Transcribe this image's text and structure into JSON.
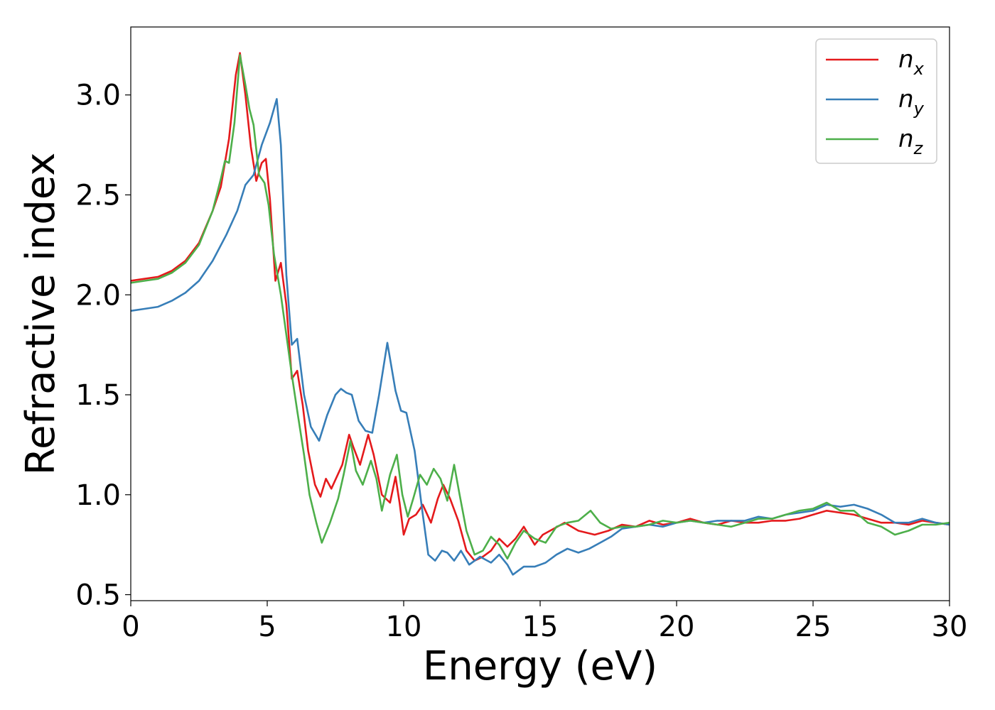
{
  "chart_data": {
    "type": "line",
    "xlabel": "Energy (eV)",
    "ylabel": "Refractive index",
    "xlim": [
      0,
      30
    ],
    "ylim": [
      0.47,
      3.34
    ],
    "xticks": [
      "0",
      "5",
      "10",
      "15",
      "20",
      "25",
      "30"
    ],
    "yticks": [
      "0.5",
      "1.0",
      "1.5",
      "2.0",
      "2.5",
      "3.0"
    ],
    "grid": false,
    "legend_position": "top-right",
    "series": [
      {
        "name": "n",
        "subscript": "x",
        "color": "#e41a1c",
        "points": [
          [
            0,
            2.07
          ],
          [
            0.5,
            2.08
          ],
          [
            1.0,
            2.09
          ],
          [
            1.5,
            2.12
          ],
          [
            2.0,
            2.17
          ],
          [
            2.5,
            2.26
          ],
          [
            3.0,
            2.42
          ],
          [
            3.3,
            2.54
          ],
          [
            3.6,
            2.78
          ],
          [
            3.85,
            3.1
          ],
          [
            4.0,
            3.21
          ],
          [
            4.2,
            3.0
          ],
          [
            4.4,
            2.74
          ],
          [
            4.6,
            2.57
          ],
          [
            4.8,
            2.66
          ],
          [
            4.95,
            2.68
          ],
          [
            5.1,
            2.48
          ],
          [
            5.3,
            2.07
          ],
          [
            5.5,
            2.16
          ],
          [
            5.7,
            1.95
          ],
          [
            5.9,
            1.58
          ],
          [
            6.1,
            1.62
          ],
          [
            6.3,
            1.45
          ],
          [
            6.5,
            1.22
          ],
          [
            6.75,
            1.05
          ],
          [
            6.95,
            0.99
          ],
          [
            7.15,
            1.08
          ],
          [
            7.35,
            1.03
          ],
          [
            7.55,
            1.09
          ],
          [
            7.75,
            1.15
          ],
          [
            8.0,
            1.3
          ],
          [
            8.15,
            1.24
          ],
          [
            8.4,
            1.15
          ],
          [
            8.7,
            1.3
          ],
          [
            8.9,
            1.2
          ],
          [
            9.2,
            1.0
          ],
          [
            9.5,
            0.96
          ],
          [
            9.7,
            1.09
          ],
          [
            9.85,
            0.96
          ],
          [
            10.0,
            0.8
          ],
          [
            10.2,
            0.88
          ],
          [
            10.45,
            0.9
          ],
          [
            10.7,
            0.95
          ],
          [
            11.0,
            0.86
          ],
          [
            11.25,
            0.98
          ],
          [
            11.45,
            1.05
          ],
          [
            11.7,
            0.98
          ],
          [
            12.0,
            0.87
          ],
          [
            12.3,
            0.72
          ],
          [
            12.6,
            0.67
          ],
          [
            12.9,
            0.69
          ],
          [
            13.2,
            0.72
          ],
          [
            13.5,
            0.78
          ],
          [
            13.8,
            0.74
          ],
          [
            14.1,
            0.78
          ],
          [
            14.4,
            0.84
          ],
          [
            14.8,
            0.75
          ],
          [
            15.1,
            0.8
          ],
          [
            15.5,
            0.83
          ],
          [
            15.9,
            0.86
          ],
          [
            16.4,
            0.82
          ],
          [
            17.0,
            0.8
          ],
          [
            17.5,
            0.82
          ],
          [
            18.0,
            0.85
          ],
          [
            18.5,
            0.84
          ],
          [
            19.0,
            0.87
          ],
          [
            19.5,
            0.85
          ],
          [
            20.0,
            0.86
          ],
          [
            20.5,
            0.88
          ],
          [
            21.0,
            0.86
          ],
          [
            21.5,
            0.85
          ],
          [
            22.0,
            0.87
          ],
          [
            22.5,
            0.86
          ],
          [
            23.0,
            0.86
          ],
          [
            23.5,
            0.87
          ],
          [
            24.0,
            0.87
          ],
          [
            24.5,
            0.88
          ],
          [
            25.0,
            0.9
          ],
          [
            25.5,
            0.92
          ],
          [
            26.0,
            0.91
          ],
          [
            26.5,
            0.9
          ],
          [
            27.0,
            0.88
          ],
          [
            27.5,
            0.86
          ],
          [
            28.0,
            0.86
          ],
          [
            28.5,
            0.85
          ],
          [
            29.0,
            0.87
          ],
          [
            29.5,
            0.86
          ],
          [
            30.0,
            0.85
          ]
        ]
      },
      {
        "name": "n",
        "subscript": "y",
        "color": "#377eb8",
        "points": [
          [
            0,
            1.92
          ],
          [
            0.5,
            1.93
          ],
          [
            1.0,
            1.94
          ],
          [
            1.5,
            1.97
          ],
          [
            2.0,
            2.01
          ],
          [
            2.5,
            2.07
          ],
          [
            3.0,
            2.17
          ],
          [
            3.5,
            2.3
          ],
          [
            3.9,
            2.42
          ],
          [
            4.2,
            2.55
          ],
          [
            4.5,
            2.6
          ],
          [
            4.8,
            2.75
          ],
          [
            5.1,
            2.86
          ],
          [
            5.35,
            2.98
          ],
          [
            5.5,
            2.75
          ],
          [
            5.7,
            2.1
          ],
          [
            5.9,
            1.75
          ],
          [
            6.1,
            1.78
          ],
          [
            6.35,
            1.5
          ],
          [
            6.6,
            1.34
          ],
          [
            6.9,
            1.27
          ],
          [
            7.2,
            1.4
          ],
          [
            7.5,
            1.5
          ],
          [
            7.7,
            1.53
          ],
          [
            7.9,
            1.51
          ],
          [
            8.1,
            1.5
          ],
          [
            8.35,
            1.37
          ],
          [
            8.6,
            1.32
          ],
          [
            8.85,
            1.31
          ],
          [
            9.1,
            1.5
          ],
          [
            9.4,
            1.76
          ],
          [
            9.7,
            1.52
          ],
          [
            9.9,
            1.42
          ],
          [
            10.1,
            1.41
          ],
          [
            10.4,
            1.22
          ],
          [
            10.7,
            0.9
          ],
          [
            10.9,
            0.7
          ],
          [
            11.15,
            0.67
          ],
          [
            11.4,
            0.72
          ],
          [
            11.6,
            0.71
          ],
          [
            11.85,
            0.67
          ],
          [
            12.1,
            0.72
          ],
          [
            12.4,
            0.65
          ],
          [
            12.8,
            0.69
          ],
          [
            13.2,
            0.66
          ],
          [
            13.5,
            0.7
          ],
          [
            13.8,
            0.65
          ],
          [
            14.0,
            0.6
          ],
          [
            14.4,
            0.64
          ],
          [
            14.8,
            0.64
          ],
          [
            15.2,
            0.66
          ],
          [
            15.6,
            0.7
          ],
          [
            16.0,
            0.73
          ],
          [
            16.4,
            0.71
          ],
          [
            16.8,
            0.73
          ],
          [
            17.2,
            0.76
          ],
          [
            17.6,
            0.79
          ],
          [
            18.0,
            0.83
          ],
          [
            18.5,
            0.84
          ],
          [
            19.0,
            0.85
          ],
          [
            19.5,
            0.84
          ],
          [
            20.0,
            0.86
          ],
          [
            20.5,
            0.87
          ],
          [
            21.0,
            0.86
          ],
          [
            21.5,
            0.87
          ],
          [
            22.0,
            0.87
          ],
          [
            22.5,
            0.87
          ],
          [
            23.0,
            0.89
          ],
          [
            23.5,
            0.88
          ],
          [
            24.0,
            0.9
          ],
          [
            24.5,
            0.91
          ],
          [
            25.0,
            0.92
          ],
          [
            25.5,
            0.95
          ],
          [
            26.0,
            0.94
          ],
          [
            26.5,
            0.95
          ],
          [
            27.0,
            0.93
          ],
          [
            27.5,
            0.9
          ],
          [
            28.0,
            0.86
          ],
          [
            28.5,
            0.86
          ],
          [
            29.0,
            0.88
          ],
          [
            29.5,
            0.86
          ],
          [
            30.0,
            0.85
          ]
        ]
      },
      {
        "name": "n",
        "subscript": "z",
        "color": "#4daf4a",
        "points": [
          [
            0,
            2.06
          ],
          [
            0.5,
            2.07
          ],
          [
            1.0,
            2.08
          ],
          [
            1.5,
            2.11
          ],
          [
            2.0,
            2.16
          ],
          [
            2.5,
            2.25
          ],
          [
            3.0,
            2.42
          ],
          [
            3.3,
            2.58
          ],
          [
            3.45,
            2.67
          ],
          [
            3.6,
            2.66
          ],
          [
            3.8,
            2.86
          ],
          [
            4.0,
            3.2
          ],
          [
            4.2,
            3.05
          ],
          [
            4.35,
            2.93
          ],
          [
            4.5,
            2.85
          ],
          [
            4.7,
            2.6
          ],
          [
            4.9,
            2.56
          ],
          [
            5.05,
            2.45
          ],
          [
            5.25,
            2.2
          ],
          [
            5.5,
            2.0
          ],
          [
            5.7,
            1.8
          ],
          [
            5.9,
            1.6
          ],
          [
            6.1,
            1.42
          ],
          [
            6.35,
            1.2
          ],
          [
            6.55,
            1.0
          ],
          [
            6.8,
            0.86
          ],
          [
            7.0,
            0.76
          ],
          [
            7.3,
            0.86
          ],
          [
            7.6,
            0.98
          ],
          [
            7.8,
            1.1
          ],
          [
            8.05,
            1.27
          ],
          [
            8.25,
            1.12
          ],
          [
            8.5,
            1.05
          ],
          [
            8.8,
            1.17
          ],
          [
            9.0,
            1.08
          ],
          [
            9.2,
            0.92
          ],
          [
            9.5,
            1.1
          ],
          [
            9.75,
            1.2
          ],
          [
            9.95,
            1.0
          ],
          [
            10.15,
            0.89
          ],
          [
            10.35,
            0.98
          ],
          [
            10.6,
            1.1
          ],
          [
            10.85,
            1.05
          ],
          [
            11.1,
            1.13
          ],
          [
            11.35,
            1.08
          ],
          [
            11.6,
            0.97
          ],
          [
            11.85,
            1.15
          ],
          [
            12.05,
            1.0
          ],
          [
            12.3,
            0.82
          ],
          [
            12.6,
            0.7
          ],
          [
            12.9,
            0.72
          ],
          [
            13.2,
            0.79
          ],
          [
            13.5,
            0.75
          ],
          [
            13.8,
            0.68
          ],
          [
            14.1,
            0.76
          ],
          [
            14.4,
            0.82
          ],
          [
            14.8,
            0.78
          ],
          [
            15.2,
            0.76
          ],
          [
            15.6,
            0.84
          ],
          [
            16.0,
            0.86
          ],
          [
            16.4,
            0.87
          ],
          [
            16.85,
            0.92
          ],
          [
            17.2,
            0.86
          ],
          [
            17.6,
            0.83
          ],
          [
            18.0,
            0.84
          ],
          [
            18.5,
            0.84
          ],
          [
            19.0,
            0.85
          ],
          [
            19.5,
            0.87
          ],
          [
            20.0,
            0.86
          ],
          [
            20.5,
            0.87
          ],
          [
            21.0,
            0.86
          ],
          [
            21.5,
            0.85
          ],
          [
            22.0,
            0.84
          ],
          [
            22.5,
            0.86
          ],
          [
            23.0,
            0.88
          ],
          [
            23.5,
            0.88
          ],
          [
            24.0,
            0.9
          ],
          [
            24.5,
            0.92
          ],
          [
            25.0,
            0.93
          ],
          [
            25.5,
            0.96
          ],
          [
            26.0,
            0.92
          ],
          [
            26.5,
            0.92
          ],
          [
            27.0,
            0.86
          ],
          [
            27.5,
            0.84
          ],
          [
            28.0,
            0.8
          ],
          [
            28.5,
            0.82
          ],
          [
            29.0,
            0.85
          ],
          [
            29.5,
            0.85
          ],
          [
            30.0,
            0.86
          ]
        ]
      }
    ]
  }
}
